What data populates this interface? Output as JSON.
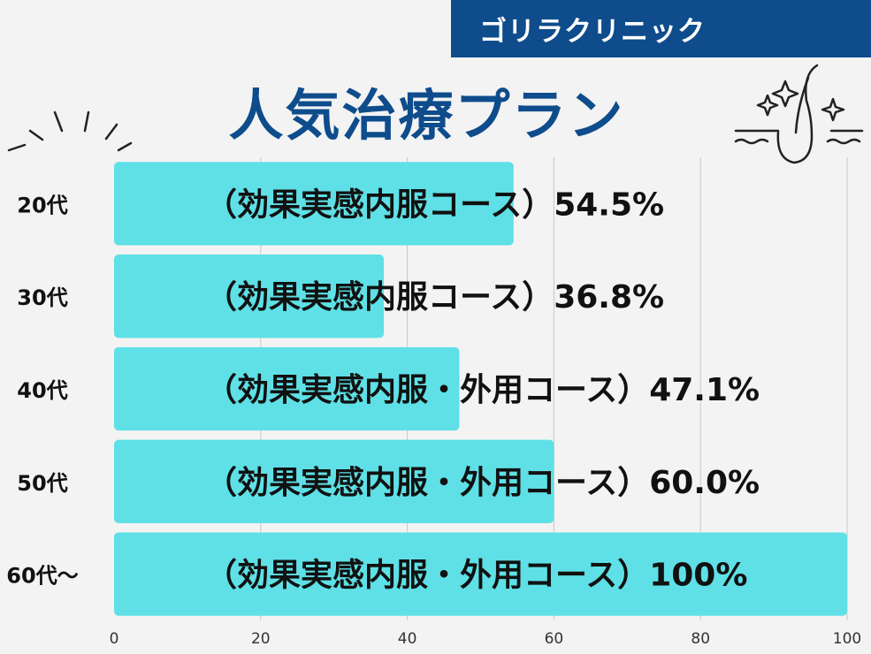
{
  "brand": {
    "name": "ゴリラクリニック"
  },
  "colors": {
    "brand": "#0e4c8c",
    "bar": "#5ee0e6",
    "background": "#f3f3f3",
    "grid": "#c8c8c8"
  },
  "decor": {
    "left_icon": "sparkle-lines-icon",
    "right_icon": "hair-follicle-icon"
  },
  "chart_data": {
    "type": "bar",
    "orientation": "horizontal",
    "title": "人気治療プラン",
    "categories": [
      "20代",
      "30代",
      "40代",
      "50代",
      "60代〜"
    ],
    "values": [
      54.5,
      36.8,
      47.1,
      60.0,
      100
    ],
    "data_labels": [
      "（効果実感内服コース）54.5%",
      "（効果実感内服コース）36.8%",
      "（効果実感内服・外用コース）47.1%",
      "（効果実感内服・外用コース）60.0%",
      "（効果実感内服・外用コース）100%"
    ],
    "xlim": [
      0,
      100
    ],
    "xticks": [
      0,
      20,
      40,
      60,
      80,
      100
    ],
    "grid": true,
    "legend": "none"
  }
}
